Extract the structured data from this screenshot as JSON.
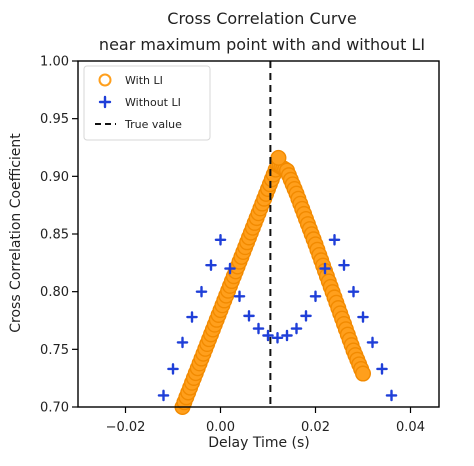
{
  "chart_data": {
    "type": "scatter",
    "title": "Cross Correlation Curve\nnear maximum point with and without LI",
    "title_lines": [
      "Cross Correlation Curve",
      "near maximum point with and without LI"
    ],
    "xlabel": "Delay Time (s)",
    "ylabel": "Cross Correlation Coefficient",
    "xlim": [
      -0.03,
      0.046
    ],
    "ylim": [
      0.7,
      1.0
    ],
    "xticks": [
      -0.02,
      0.0,
      0.02,
      0.04
    ],
    "xtick_labels": [
      "−0.02",
      "0.00",
      "0.02",
      "0.04"
    ],
    "yticks": [
      0.7,
      0.75,
      0.8,
      0.85,
      0.9,
      0.95,
      1.0
    ],
    "ytick_labels": [
      "0.70",
      "0.75",
      "0.80",
      "0.85",
      "0.90",
      "0.95",
      "1.00"
    ],
    "grid": false,
    "legend_location": "top-left",
    "colors": {
      "with_li": "#ff9f1c",
      "without_li": "#1f3fd8",
      "true_value": "#111111",
      "axes": "#000000"
    },
    "series": [
      {
        "name": "With LI",
        "marker": "circle",
        "peak_x": 0.0122,
        "peak_y": 0.916,
        "x": [
          -0.008,
          -0.006,
          -0.004,
          -0.002,
          0.0,
          0.002,
          0.004,
          0.006,
          0.008,
          0.01,
          0.012,
          0.014,
          0.016,
          0.018,
          0.02,
          0.022,
          0.024,
          0.026,
          0.028,
          0.03
        ],
        "y": [
          0.7,
          0.721,
          0.742,
          0.763,
          0.784,
          0.805,
          0.826,
          0.847,
          0.868,
          0.889,
          0.91,
          0.905,
          0.885,
          0.863,
          0.841,
          0.818,
          0.795,
          0.772,
          0.749,
          0.729
        ]
      },
      {
        "name": "Without LI",
        "marker": "plus",
        "x": [
          -0.012,
          -0.01,
          -0.008,
          -0.006,
          -0.004,
          -0.002,
          0.0,
          0.002,
          0.004,
          0.006,
          0.008,
          0.01,
          0.012,
          0.014,
          0.016,
          0.018,
          0.02,
          0.022,
          0.024,
          0.026,
          0.028,
          0.03,
          0.032,
          0.034,
          0.036
        ],
        "y": [
          0.71,
          0.733,
          0.756,
          0.778,
          0.8,
          0.823,
          0.845,
          0.82,
          0.796,
          0.779,
          0.768,
          0.762,
          0.76,
          0.762,
          0.768,
          0.779,
          0.796,
          0.82,
          0.845,
          0.823,
          0.8,
          0.778,
          0.756,
          0.733,
          0.71
        ]
      },
      {
        "name": "True value",
        "type": "vline",
        "x": 0.0105
      }
    ]
  }
}
